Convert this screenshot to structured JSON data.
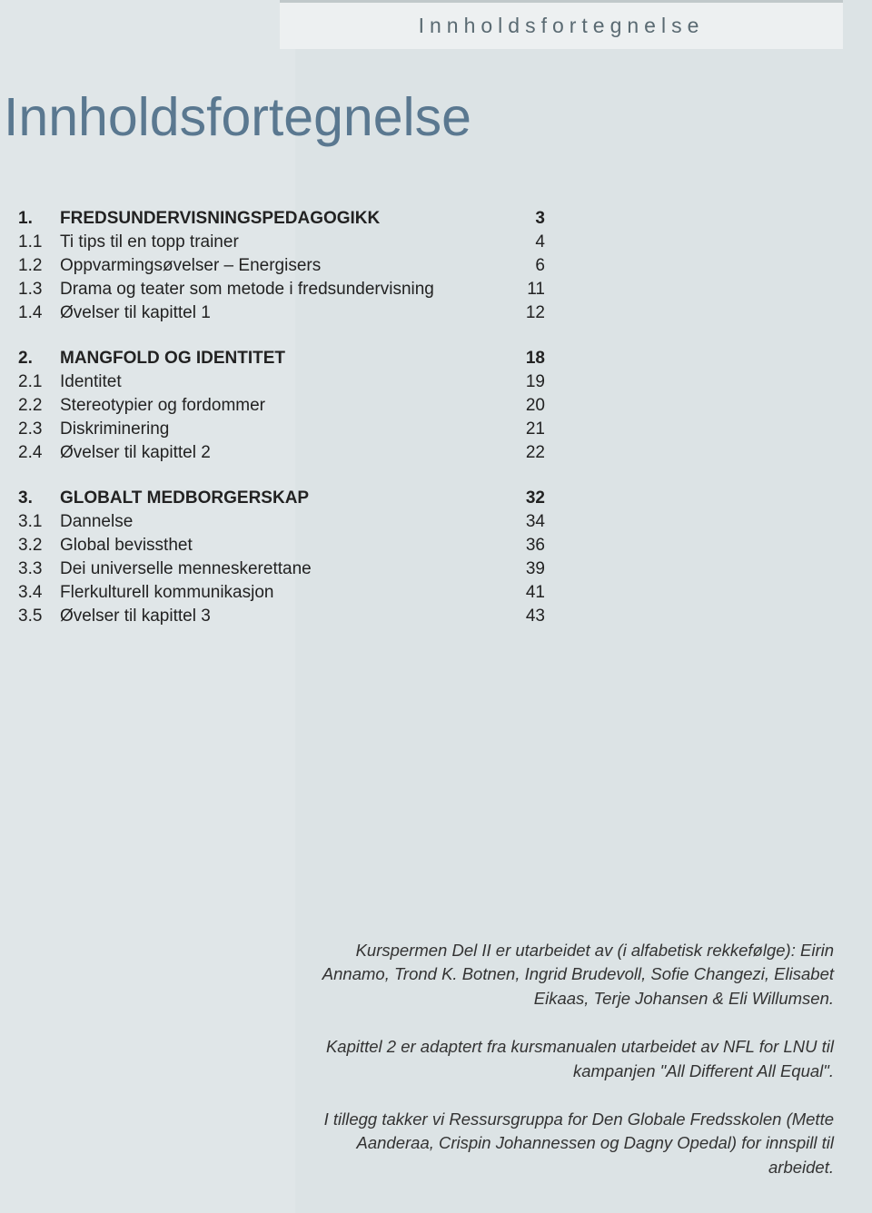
{
  "header": {
    "tab_label": "Innholdsfortegnelse"
  },
  "title": "Innholdsfortegnelse",
  "toc": [
    {
      "rows": [
        {
          "num": "1.",
          "label": "FREDSUNDERVISNINGSPEDAGOGIKK",
          "page": "3",
          "bold": true
        },
        {
          "num": "1.1",
          "label": "Ti tips til en topp trainer",
          "page": "4",
          "bold": false
        },
        {
          "num": "1.2",
          "label": "Oppvarmingsøvelser – Energisers",
          "page": "6",
          "bold": false
        },
        {
          "num": "1.3",
          "label": "Drama og teater som metode i fredsundervisning",
          "page": "11",
          "bold": false
        },
        {
          "num": "1.4",
          "label": "Øvelser til kapittel 1",
          "page": "12",
          "bold": false
        }
      ]
    },
    {
      "rows": [
        {
          "num": "2.",
          "label": "MANGFOLD OG IDENTITET",
          "page": "18",
          "bold": true
        },
        {
          "num": "2.1",
          "label": "Identitet",
          "page": "19",
          "bold": false
        },
        {
          "num": "2.2",
          "label": "Stereotypier og fordommer",
          "page": "20",
          "bold": false
        },
        {
          "num": "2.3",
          "label": "Diskriminering",
          "page": "21",
          "bold": false
        },
        {
          "num": "2.4",
          "label": "Øvelser til kapittel 2",
          "page": "22",
          "bold": false
        }
      ]
    },
    {
      "rows": [
        {
          "num": "3.",
          "label": "GLOBALT MEDBORGERSKAP",
          "page": "32",
          "bold": true
        },
        {
          "num": "3.1",
          "label": "Dannelse",
          "page": "34",
          "bold": false
        },
        {
          "num": "3.2",
          "label": "Global bevissthet",
          "page": "36",
          "bold": false
        },
        {
          "num": "3.3",
          "label": "Dei universelle menneskerettane",
          "page": "39",
          "bold": false
        },
        {
          "num": "3.4",
          "label": "Flerkulturell kommunikasjon",
          "page": "41",
          "bold": false
        },
        {
          "num": "3.5",
          "label": "Øvelser til kapittel 3",
          "page": "43",
          "bold": false
        }
      ]
    }
  ],
  "credits": {
    "p1": "Kurspermen Del II er utarbeidet av (i alfabetisk rekkefølge): Eirin Annamo, Trond K. Botnen, Ingrid Brudevoll, Sofie Changezi, Elisabet Eikaas, Terje Johansen & Eli Willumsen.",
    "p2": "Kapittel 2 er adaptert fra kursmanualen utarbeidet av NFL for LNU til kampanjen \"All Different All Equal\".",
    "p3": "I tillegg takker vi Ressursgruppa for Den Globale Fredsskolen (Mette Aanderaa, Crispin Johannessen og Dagny Opedal) for innspill til arbeidet."
  },
  "colors": {
    "page_bg": "#e0e6e8",
    "panel_bg": "#dce3e5",
    "tab_bg": "#edf0f1",
    "tab_border": "#c0c8ca",
    "tab_text": "#5a6a72",
    "title_color": "#5a7890",
    "body_text": "#222222",
    "credits_text": "#333333"
  }
}
